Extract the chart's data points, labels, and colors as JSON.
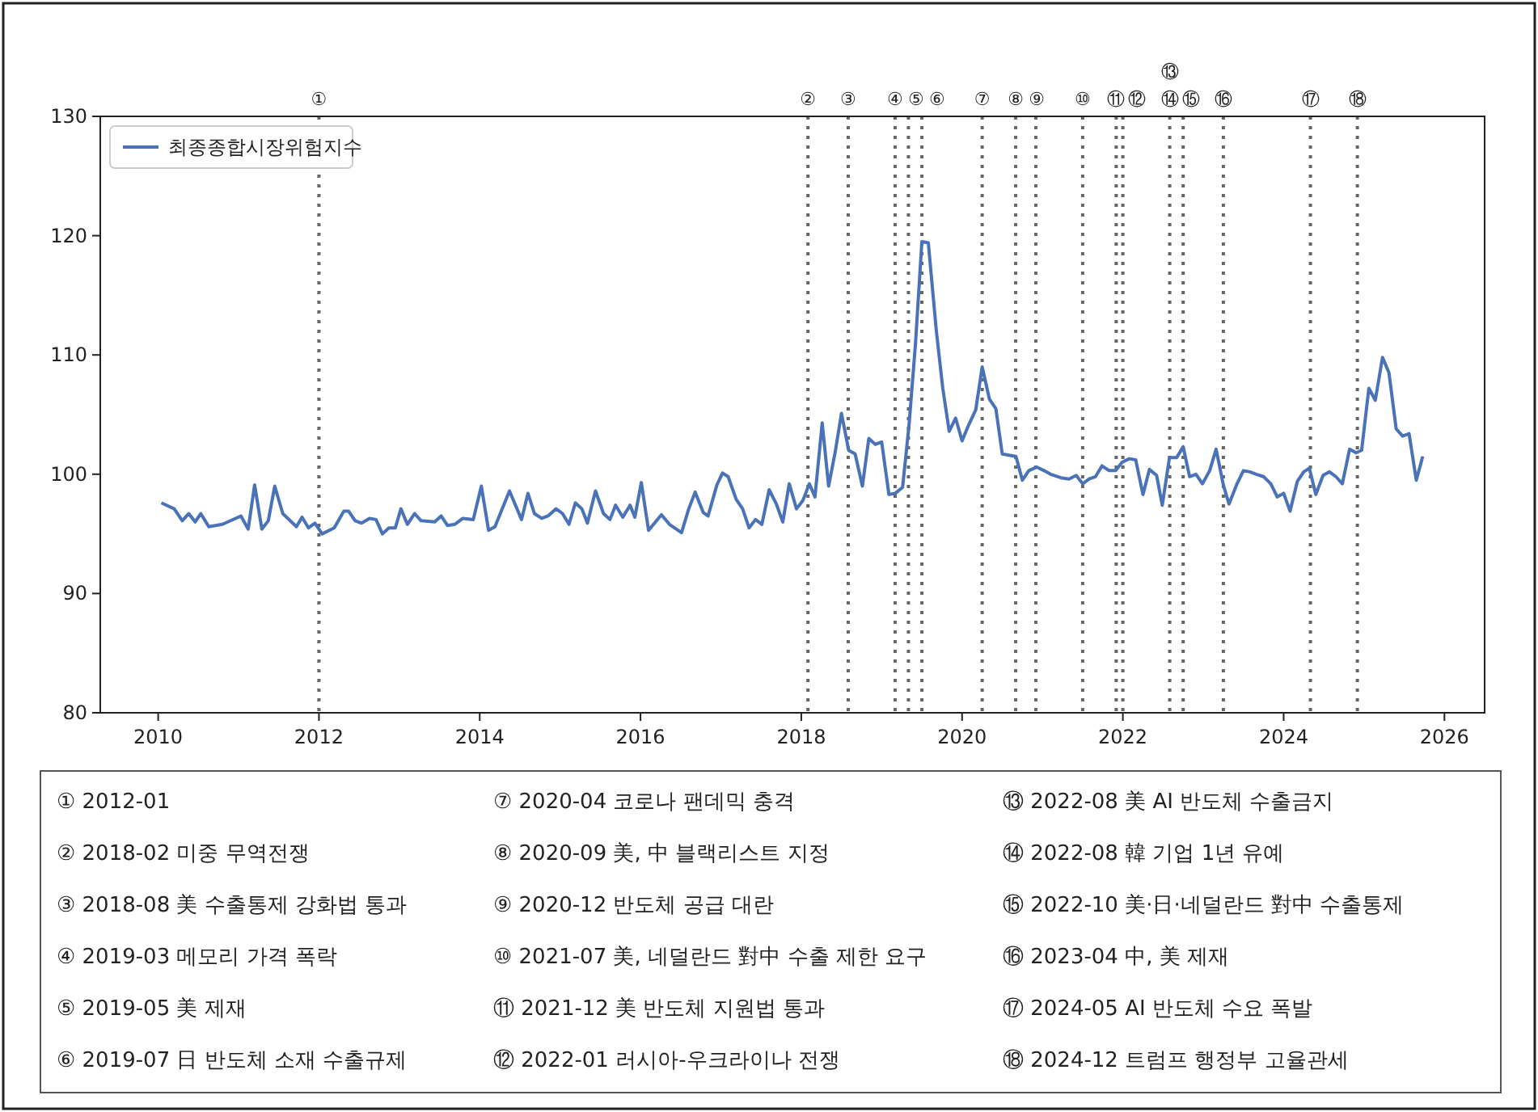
{
  "chart_data": {
    "type": "line",
    "x": [
      2010.04,
      2010.2,
      2010.3,
      2010.38,
      2010.46,
      2010.53,
      2010.63,
      2010.8,
      2011.03,
      2011.12,
      2011.2,
      2011.29,
      2011.37,
      2011.45,
      2011.55,
      2011.72,
      2011.79,
      2011.87,
      2011.95,
      2012.04,
      2012.19,
      2012.31,
      2012.37,
      2012.45,
      2012.53,
      2012.63,
      2012.71,
      2012.79,
      2012.87,
      2012.95,
      2013.02,
      2013.1,
      2013.19,
      2013.27,
      2013.44,
      2013.52,
      2013.6,
      2013.69,
      2013.79,
      2013.92,
      2014.02,
      2014.11,
      2014.19,
      2014.37,
      2014.52,
      2014.6,
      2014.68,
      2014.77,
      2014.85,
      2014.95,
      2015.03,
      2015.11,
      2015.19,
      2015.27,
      2015.34,
      2015.44,
      2015.54,
      2015.62,
      2015.69,
      2015.78,
      2015.87,
      2015.93,
      2016.01,
      2016.1,
      2016.26,
      2016.36,
      2016.51,
      2016.6,
      2016.68,
      2016.78,
      2016.84,
      2016.95,
      2017.02,
      2017.09,
      2017.19,
      2017.27,
      2017.35,
      2017.43,
      2017.51,
      2017.6,
      2017.69,
      2017.77,
      2017.85,
      2017.94,
      2018.02,
      2018.1,
      2018.17,
      2018.26,
      2018.34,
      2018.42,
      2018.5,
      2018.59,
      2018.67,
      2018.76,
      2018.84,
      2018.92,
      2019.0,
      2019.09,
      2019.17,
      2019.26,
      2019.34,
      2019.42,
      2019.5,
      2019.58,
      2019.68,
      2019.76,
      2019.84,
      2019.92,
      2020.0,
      2020.08,
      2020.17,
      2020.25,
      2020.34,
      2020.42,
      2020.5,
      2020.58,
      2020.67,
      2020.75,
      2020.83,
      2020.93,
      2021.02,
      2021.1,
      2021.23,
      2021.33,
      2021.42,
      2021.5,
      2021.58,
      2021.66,
      2021.74,
      2021.83,
      2021.91,
      2021.99,
      2022.08,
      2022.16,
      2022.25,
      2022.33,
      2022.42,
      2022.49,
      2022.58,
      2022.67,
      2022.75,
      2022.83,
      2022.91,
      2022.99,
      2023.08,
      2023.16,
      2023.25,
      2023.32,
      2023.42,
      2023.5,
      2023.58,
      2023.66,
      2023.75,
      2023.84,
      2023.92,
      2024.0,
      2024.08,
      2024.17,
      2024.25,
      2024.32,
      2024.4,
      2024.49,
      2024.57,
      2024.65,
      2024.73,
      2024.82,
      2024.9,
      2024.97,
      2025.06,
      2025.14,
      2025.23,
      2025.31,
      2025.4,
      2025.48,
      2025.56,
      2025.65,
      2025.73
    ],
    "series": [
      {
        "name": "최종종합시장위험지수",
        "color": "#4a72b8",
        "values": [
          97.6,
          97.1,
          96.1,
          96.7,
          96.0,
          96.7,
          95.6,
          95.8,
          96.5,
          95.4,
          99.1,
          95.4,
          96.1,
          99.0,
          96.7,
          95.6,
          96.4,
          95.5,
          95.9,
          95.0,
          95.5,
          96.9,
          96.9,
          96.1,
          95.9,
          96.3,
          96.2,
          95.0,
          95.5,
          95.5,
          97.1,
          95.8,
          96.7,
          96.1,
          96.0,
          96.5,
          95.7,
          95.8,
          96.3,
          96.2,
          99.0,
          95.3,
          95.6,
          98.6,
          96.2,
          98.4,
          96.7,
          96.3,
          96.5,
          97.1,
          96.7,
          95.8,
          97.6,
          97.1,
          95.9,
          98.6,
          96.7,
          96.2,
          97.4,
          96.4,
          97.4,
          96.4,
          99.3,
          95.3,
          96.6,
          95.8,
          95.1,
          97.1,
          98.5,
          96.8,
          96.5,
          99.1,
          100.1,
          99.8,
          97.9,
          97.1,
          95.5,
          96.2,
          95.8,
          98.7,
          97.5,
          96.0,
          99.2,
          97.1,
          97.8,
          99.2,
          98.1,
          104.3,
          99.0,
          101.8,
          105.1,
          102.0,
          101.7,
          99.0,
          103.0,
          102.5,
          102.7,
          98.3,
          98.4,
          98.9,
          104.1,
          110.9,
          119.5,
          119.4,
          112.0,
          107.2,
          103.6,
          104.7,
          102.8,
          104.1,
          105.4,
          109.0,
          106.3,
          105.5,
          101.7,
          101.6,
          101.5,
          99.5,
          100.3,
          100.6,
          100.3,
          100.0,
          99.7,
          99.6,
          99.9,
          99.2,
          99.6,
          99.8,
          100.7,
          100.3,
          100.3,
          101.0,
          101.3,
          101.2,
          98.3,
          100.4,
          99.9,
          97.4,
          101.4,
          101.4,
          102.3,
          99.8,
          100.0,
          99.2,
          100.3,
          102.1,
          99.1,
          97.5,
          99.2,
          100.3,
          100.2,
          100.0,
          99.8,
          99.2,
          98.1,
          98.4,
          96.9,
          99.4,
          100.2,
          100.5,
          98.3,
          99.9,
          100.2,
          99.8,
          99.2,
          102.1,
          101.8,
          102.0,
          107.2,
          106.2,
          109.8,
          108.5,
          103.8,
          103.2,
          103.4,
          99.5,
          101.5
        ]
      }
    ],
    "xlim": [
      2009.28,
      2026.5
    ],
    "xticks": [
      2010,
      2012,
      2014,
      2016,
      2018,
      2020,
      2022,
      2024,
      2026
    ],
    "ylim": [
      80,
      130
    ],
    "yticks": [
      80,
      90,
      100,
      110,
      120,
      130
    ],
    "grid": false,
    "legend": "top left",
    "ref_lines": [
      {
        "axis": "x",
        "value": 2012.0,
        "label": "①",
        "color": "#666666",
        "line_style": "dotted"
      },
      {
        "axis": "x",
        "value": 2018.083,
        "label": "②",
        "color": "#666666",
        "line_style": "dotted"
      },
      {
        "axis": "x",
        "value": 2018.583,
        "label": "③",
        "color": "#666666",
        "line_style": "dotted"
      },
      {
        "axis": "x",
        "value": 2019.167,
        "label": "④",
        "color": "#666666",
        "line_style": "dotted"
      },
      {
        "axis": "x",
        "value": 2019.333,
        "label": "⑤",
        "color": "#666666",
        "line_style": "dotted"
      },
      {
        "axis": "x",
        "value": 2019.5,
        "label": "⑥",
        "color": "#666666",
        "line_style": "dotted"
      },
      {
        "axis": "x",
        "value": 2020.25,
        "label": "⑦",
        "color": "#666666",
        "line_style": "dotted"
      },
      {
        "axis": "x",
        "value": 2020.667,
        "label": "⑧",
        "color": "#666666",
        "line_style": "dotted"
      },
      {
        "axis": "x",
        "value": 2020.917,
        "label": "⑨",
        "color": "#666666",
        "line_style": "dotted"
      },
      {
        "axis": "x",
        "value": 2021.5,
        "label": "⑩",
        "color": "#666666",
        "line_style": "dotted"
      },
      {
        "axis": "x",
        "value": 2021.917,
        "label": "⑪",
        "color": "#666666",
        "line_style": "dotted"
      },
      {
        "axis": "x",
        "value": 2022.0,
        "label": "⑫",
        "color": "#666666",
        "line_style": "dotted"
      },
      {
        "axis": "x",
        "value": 2022.583,
        "label": "⑬ ⑭",
        "color": "#666666",
        "line_style": "dotted"
      },
      {
        "axis": "x",
        "value": 2022.75,
        "label": "⑮",
        "color": "#666666",
        "line_style": "dotted"
      },
      {
        "axis": "x",
        "value": 2023.25,
        "label": "⑯",
        "color": "#666666",
        "line_style": "dotted"
      },
      {
        "axis": "x",
        "value": 2024.333,
        "label": "⑰",
        "color": "#666666",
        "line_style": "dotted"
      },
      {
        "axis": "x",
        "value": 2024.917,
        "label": "⑱",
        "color": "#666666",
        "line_style": "dotted"
      }
    ],
    "annotations": [
      "① 2012-01",
      "② 2018-02 미중 무역전쟁",
      "③ 2018-08 美 수출통제 강화법 통과",
      "④ 2019-03 메모리 가격 폭락",
      "⑤ 2019-05 美 제재",
      "⑥ 2019-07 日 반도체 소재 수출규제",
      "⑦ 2020-04 코로나 팬데믹 충격",
      "⑧ 2020-09 美, 中 블랙리스트 지정",
      "⑨ 2020-12 반도체 공급 대란",
      "⑩ 2021-07 美, 네덜란드 對中 수출 제한 요구",
      "⑪ 2021-12 美 반도체 지원법 통과",
      "⑫ 2022-01 러시아-우크라이나 전쟁",
      "⑬ 2022-08 美 AI 반도체 수출금지",
      "⑭ 2022-08 韓 기업 1년 유예",
      "⑮ 2022-10 美·日·네덜란드 對中 수출통제",
      "⑯ 2023-04 中, 美 제재",
      "⑰ 2024-05 AI 반도체 수요 폭발",
      "⑱ 2024-12 트럼프 행정부 고율관세"
    ]
  }
}
